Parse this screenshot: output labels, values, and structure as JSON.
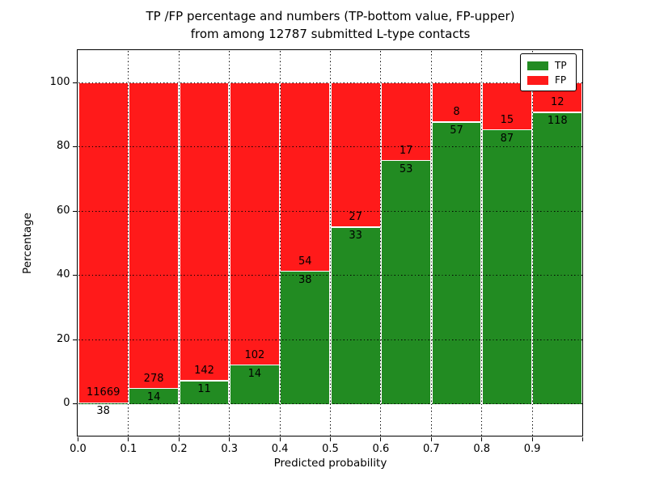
{
  "figure": {
    "title_line1": "TP /FP percentage and numbers (TP-bottom value, FP-upper)",
    "title_line2": "from among 12787 submitted L-type contacts"
  },
  "chart_data": {
    "type": "bar",
    "stacked": true,
    "normalized_to_percent": true,
    "title": "TP /FP percentage and numbers (TP-bottom value, FP-upper) from among 12787 submitted L-type contacts",
    "xlabel": "Predicted probability",
    "ylabel": "Percentage",
    "total_submitted": 12787,
    "x_bin_edges": [
      0.0,
      0.1,
      0.2,
      0.3,
      0.4,
      0.5,
      0.6,
      0.7,
      0.8,
      0.9,
      1.0
    ],
    "series": [
      {
        "name": "TP",
        "color": "#228b22",
        "counts": [
          38,
          14,
          11,
          14,
          38,
          33,
          53,
          57,
          87,
          118
        ]
      },
      {
        "name": "FP",
        "color": "#ff1a1a",
        "counts": [
          11669,
          278,
          142,
          102,
          54,
          27,
          17,
          8,
          15,
          12
        ]
      }
    ],
    "tp_percent_by_bin": [
      0.32,
      4.79,
      7.19,
      12.07,
      41.3,
      55.0,
      75.71,
      87.69,
      85.29,
      90.77
    ],
    "xtick_values": [
      0.0,
      0.1,
      0.2,
      0.3,
      0.4,
      0.5,
      0.6,
      0.7,
      0.8,
      0.9
    ],
    "xtick_labels": [
      "0.0",
      "0.1",
      "0.2",
      "0.3",
      "0.4",
      "0.5",
      "0.6",
      "0.7",
      "0.8",
      "0.9"
    ],
    "ytick_values": [
      0,
      20,
      40,
      60,
      80,
      100
    ],
    "ytick_labels": [
      "0",
      "20",
      "40",
      "60",
      "80",
      "100"
    ],
    "xlim": [
      0.0,
      1.0
    ],
    "ylim": [
      -10,
      110
    ],
    "grid": true,
    "grid_style": "dotted",
    "legend_position": "upper right"
  },
  "legend": {
    "items": [
      {
        "label": "TP",
        "color": "#228b22"
      },
      {
        "label": "FP",
        "color": "#ff1a1a"
      }
    ]
  },
  "colors": {
    "tp": "#228b22",
    "fp": "#ff1a1a",
    "grid": "#000000",
    "background": "#ffffff",
    "text": "#000000"
  }
}
